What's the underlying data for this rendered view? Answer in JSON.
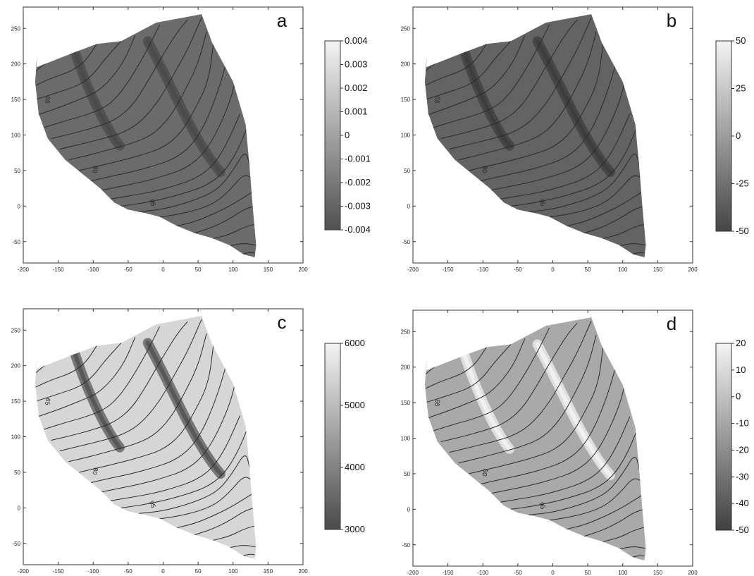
{
  "x_ticks": [
    "-200",
    "-150",
    "-100",
    "-50",
    "0",
    "50",
    "100",
    "150",
    "200"
  ],
  "y_ticks": [
    "250",
    "200",
    "150",
    "100",
    "50",
    "0",
    "-50"
  ],
  "contour_labels": [
    "65",
    "80",
    "95"
  ],
  "panels": [
    {
      "letter": "a",
      "colorbar_ticks": [
        "0.004",
        "0.003",
        "0.002",
        "0.001",
        "0",
        "-0.001",
        "-0.002",
        "-0.003",
        "-0.004"
      ],
      "fill": "#6b6b6b",
      "band": "#4a4a4a",
      "top": "#f4f4f4",
      "bottom": "#505050"
    },
    {
      "letter": "b",
      "colorbar_ticks": [
        "50",
        "25",
        "0",
        "-25",
        "-50"
      ],
      "fill": "#636363",
      "band": "#3d3d3d",
      "top": "#f4f4f4",
      "bottom": "#454545"
    },
    {
      "letter": "c",
      "colorbar_ticks": [
        "6000",
        "5000",
        "4000",
        "3000"
      ],
      "fill": "#d6d6d6",
      "band": "#555555",
      "top": "#f4f4f4",
      "bottom": "#4a4a4a"
    },
    {
      "letter": "d",
      "colorbar_ticks": [
        "20",
        "10",
        "0",
        "-10",
        "-20",
        "-30",
        "-40",
        "-50"
      ],
      "fill": "#a9a9a9",
      "band": "#f2f2f2",
      "top": "#f4f4f4",
      "bottom": "#404040"
    }
  ]
}
